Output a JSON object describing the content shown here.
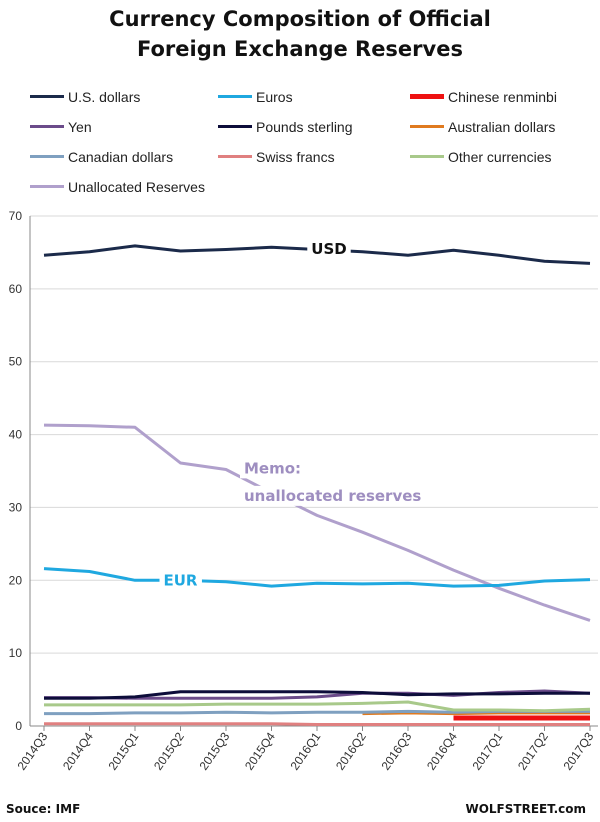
{
  "page": {
    "title_line1": "Currency Composition of Official",
    "title_line2": "Foreign Exchange Reserves",
    "source": "Souce: IMF",
    "brand": "WOLFSTREET.com"
  },
  "chart_data": {
    "type": "line",
    "title": "Currency Composition of Official Foreign Exchange Reserves",
    "xlabel": "",
    "ylabel": "",
    "x": [
      "2014Q3",
      "2014Q4",
      "2015Q1",
      "2015Q2",
      "2015Q3",
      "2015Q4",
      "2016Q1",
      "2016Q2",
      "2016Q3",
      "2016Q4",
      "2017Q1",
      "2017Q2",
      "2017Q3"
    ],
    "ylim": [
      0,
      70
    ],
    "yticks": [
      0,
      10,
      20,
      30,
      40,
      50,
      60,
      70
    ],
    "grid": "horizontal",
    "legend_position": "top",
    "series": [
      {
        "name": "U.S. dollars",
        "color": "#1b2a4a",
        "width": 3,
        "values": [
          64.6,
          65.1,
          65.9,
          65.2,
          65.4,
          65.7,
          65.4,
          65.1,
          64.6,
          65.3,
          64.6,
          63.8,
          63.5
        ]
      },
      {
        "name": "Euros",
        "color": "#1fa8e0",
        "width": 3,
        "values": [
          21.6,
          21.2,
          20.0,
          20.0,
          19.8,
          19.2,
          19.6,
          19.5,
          19.6,
          19.2,
          19.3,
          19.9,
          20.1
        ]
      },
      {
        "name": "Chinese renminbi",
        "color": "#ee1111",
        "width": 5,
        "values": [
          null,
          null,
          null,
          null,
          null,
          null,
          null,
          null,
          null,
          1.1,
          1.1,
          1.1,
          1.1
        ]
      },
      {
        "name": "Yen",
        "color": "#6b4b8a",
        "width": 3,
        "values": [
          3.9,
          3.9,
          3.8,
          3.8,
          3.8,
          3.8,
          4.0,
          4.5,
          4.5,
          4.2,
          4.6,
          4.8,
          4.5
        ]
      },
      {
        "name": "Pounds sterling",
        "color": "#0d0d3a",
        "width": 3,
        "values": [
          3.8,
          3.8,
          4.0,
          4.7,
          4.7,
          4.7,
          4.7,
          4.6,
          4.3,
          4.4,
          4.4,
          4.5,
          4.5
        ]
      },
      {
        "name": "Australian dollars",
        "color": "#e07a1f",
        "width": 3,
        "values": [
          null,
          null,
          null,
          null,
          null,
          null,
          null,
          1.7,
          1.8,
          1.7,
          1.8,
          1.8,
          1.8
        ]
      },
      {
        "name": "Canadian dollars",
        "color": "#7fa0c0",
        "width": 3,
        "values": [
          1.7,
          1.7,
          1.8,
          1.8,
          1.9,
          1.8,
          1.9,
          1.9,
          2.0,
          1.9,
          2.0,
          2.0,
          2.0
        ]
      },
      {
        "name": "Swiss francs",
        "color": "#e08080",
        "width": 3,
        "values": [
          0.3,
          0.3,
          0.3,
          0.3,
          0.3,
          0.3,
          0.2,
          0.2,
          0.2,
          0.2,
          0.2,
          0.2,
          0.2
        ]
      },
      {
        "name": "Other currencies",
        "color": "#a8c98a",
        "width": 3,
        "values": [
          2.9,
          2.9,
          2.9,
          2.9,
          3.0,
          3.0,
          3.0,
          3.1,
          3.3,
          2.2,
          2.2,
          2.1,
          2.3
        ]
      },
      {
        "name": "Unallocated Reserves",
        "color": "#b0a0cc",
        "width": 3,
        "values": [
          41.3,
          41.2,
          41.0,
          36.1,
          35.2,
          32.0,
          28.9,
          26.6,
          24.1,
          21.4,
          18.9,
          16.6,
          14.5
        ]
      }
    ],
    "annotations": [
      {
        "text": "USD",
        "x": "2016Q1",
        "y": 65.5,
        "color": "#111111"
      },
      {
        "text": "EUR",
        "x": "2015Q2",
        "y": 20.0,
        "color": "#1fa8e0"
      },
      {
        "text": "Memo:",
        "x": "2015Q3",
        "y": 35.5,
        "color": "#9e8ec0"
      },
      {
        "text": "unallocated reserves",
        "x": "2015Q3",
        "y": 32.0,
        "color": "#9e8ec0"
      }
    ]
  }
}
